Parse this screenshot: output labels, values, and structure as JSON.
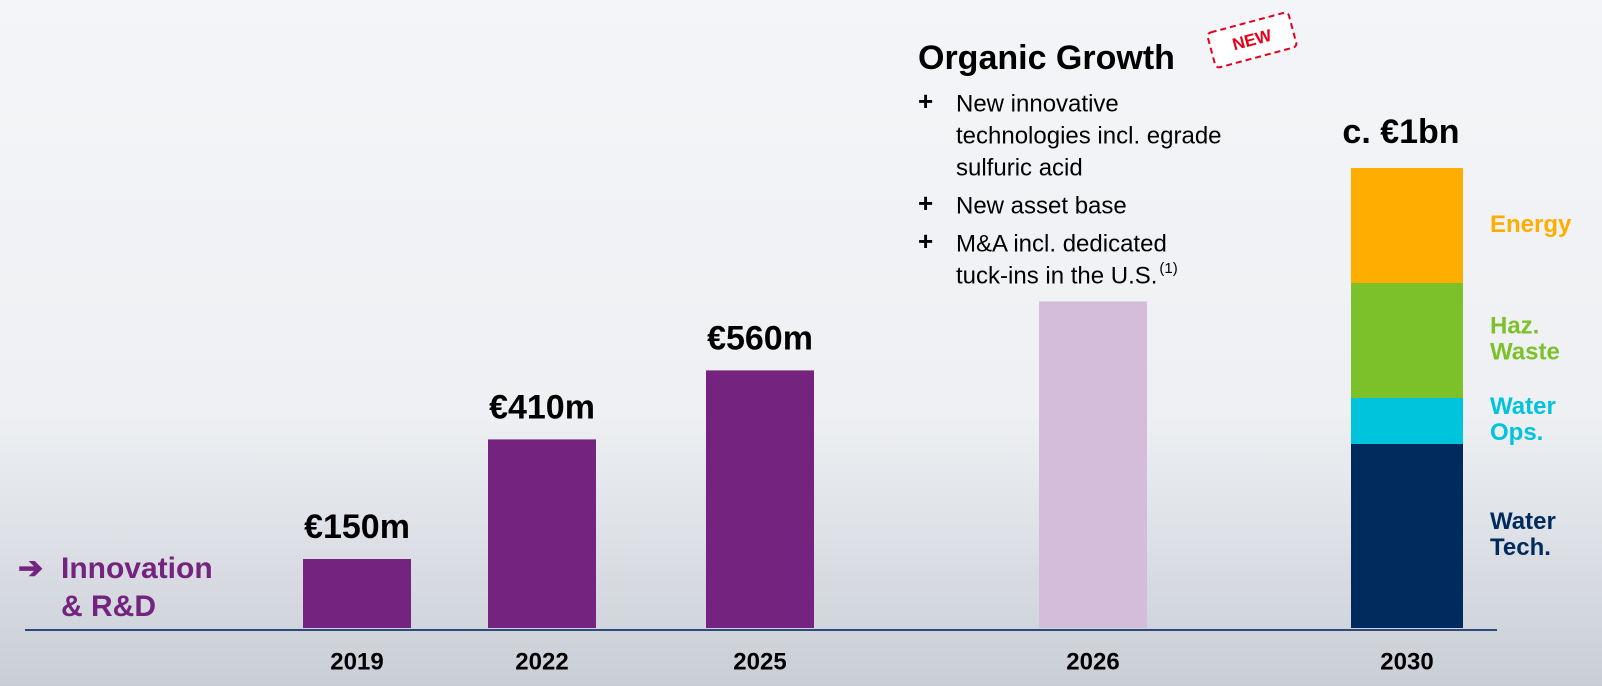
{
  "chart_data": {
    "type": "bar",
    "title": "Organic Growth",
    "tag": "NEW",
    "bullets": [
      {
        "lines": [
          "New innovative",
          "technologies incl. egrade",
          "sulfuric acid"
        ]
      },
      {
        "lines": [
          "New asset base"
        ]
      },
      {
        "lines": [
          "M&A incl. dedicated",
          "tuck-ins in the U.S."
        ],
        "footnote": "(1)"
      }
    ],
    "side_label": [
      "Innovation",
      "& R&D"
    ],
    "categories": [
      "2019",
      "2022",
      "2025",
      "2026",
      "2030"
    ],
    "values": [
      150,
      410,
      560,
      710,
      null
    ],
    "value_labels": [
      "€150m",
      "€410m",
      "€560m",
      null,
      null
    ],
    "colors": [
      "#74237f",
      "#74237f",
      "#74237f",
      "#d3bddb",
      null
    ],
    "stack": {
      "category_index": 4,
      "total": 1000,
      "total_label": "c. €1bn",
      "series": [
        {
          "name": "Water Tech.",
          "color": "#002b5c",
          "value": 400
        },
        {
          "name": "Water Ops.",
          "color": "#00c3dc",
          "value": 100
        },
        {
          "name": "Haz. Waste",
          "color": "#7dc12a",
          "value": 250
        },
        {
          "name": "Energy",
          "color": "#ffad00",
          "value": 250
        }
      ]
    },
    "ylim": [
      0,
      1000
    ]
  }
}
